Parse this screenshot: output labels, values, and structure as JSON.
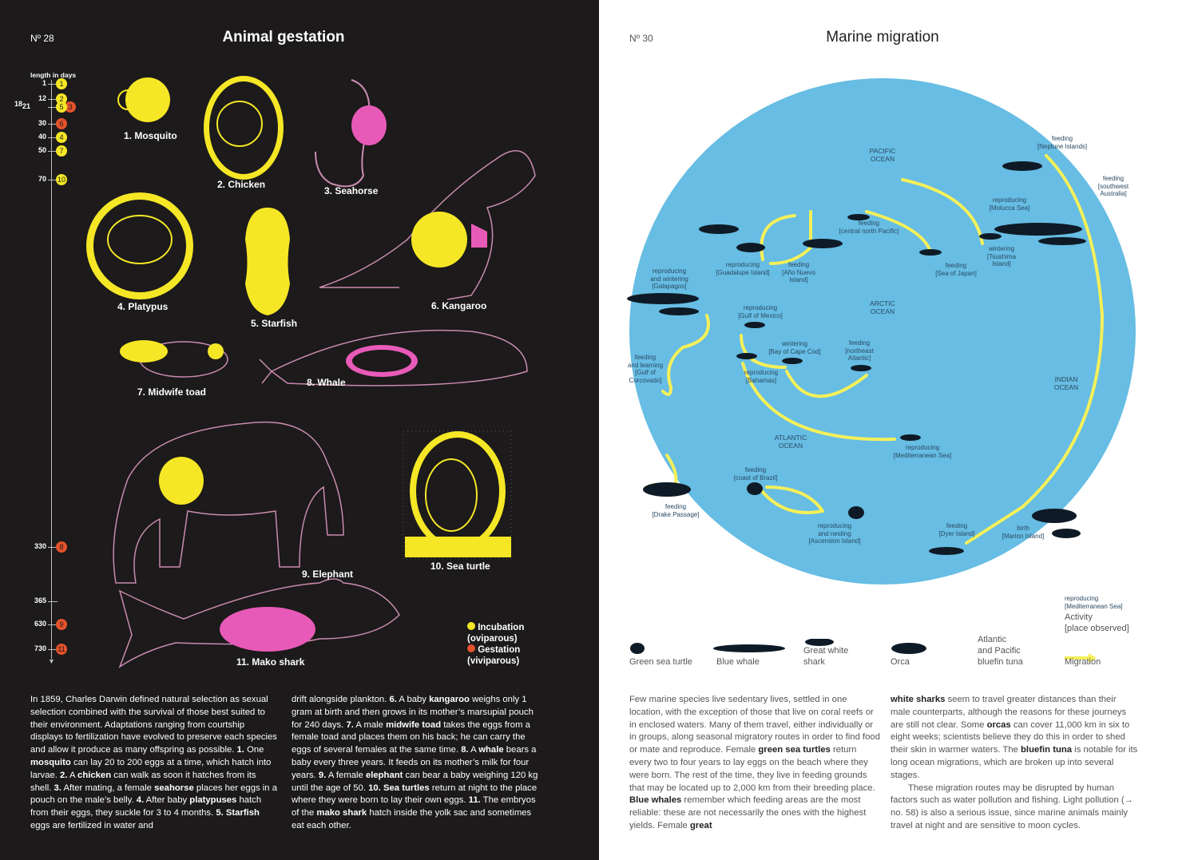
{
  "left": {
    "page_number": "Nº 28",
    "title": "Animal gestation",
    "timeline": {
      "header": "length in days",
      "ticks": [
        {
          "days": "1",
          "ids": [
            {
              "n": "1",
              "type": "incubation"
            }
          ]
        },
        {
          "days": "12",
          "ids": [
            {
              "n": "2",
              "type": "incubation"
            }
          ]
        },
        {
          "days": "18",
          "ids": [
            {
              "n": "3",
              "type": "gestation"
            }
          ]
        },
        {
          "days": "21",
          "ids": [
            {
              "n": "5",
              "type": "incubation"
            }
          ]
        },
        {
          "days": "30",
          "ids": [
            {
              "n": "6",
              "type": "gestation"
            }
          ]
        },
        {
          "days": "40",
          "ids": [
            {
              "n": "4",
              "type": "incubation"
            }
          ]
        },
        {
          "days": "50",
          "ids": [
            {
              "n": "7",
              "type": "incubation"
            }
          ]
        },
        {
          "days": "70",
          "ids": [
            {
              "n": "10",
              "type": "incubation"
            }
          ]
        },
        {
          "days": "330",
          "ids": [
            {
              "n": "8",
              "type": "gestation"
            }
          ]
        },
        {
          "days": "365",
          "ids": []
        },
        {
          "days": "630",
          "ids": [
            {
              "n": "9",
              "type": "gestation"
            }
          ]
        },
        {
          "days": "730",
          "ids": [
            {
              "n": "11",
              "type": "gestation"
            }
          ]
        }
      ]
    },
    "animals": [
      "1. Mosquito",
      "2. Chicken",
      "3. Seahorse",
      "4. Platypus",
      "5. Starfish",
      "6. Kangaroo",
      "7. Midwife toad",
      "8. Whale",
      "9. Elephant",
      "10. Sea turtle",
      "11. Mako shark"
    ],
    "legend": {
      "incubation": "Incubation",
      "incubation_sub": "(oviparous)",
      "gestation": "Gestation",
      "gestation_sub": "(viviparous)"
    },
    "colors": {
      "incubation": "#f5e726",
      "gestation": "#e4522b",
      "pouch": "#e85ab8",
      "outline": "#c98bb0"
    },
    "text_col1": [
      [
        "In 1859, Charles Darwin defined natural selection as sexual selection combined with the survival of those best suited to their environment. Adaptations ranging from courtship displays to fertilization have evolved to preserve each species and allow it produce as many offspring as possible. "
      ],
      [
        "1.",
        1
      ],
      [
        " One "
      ],
      [
        "mosquito",
        1
      ],
      [
        " can lay 20 to 200 eggs at a time, which hatch into larvae. "
      ],
      [
        "2.",
        1
      ],
      [
        " A "
      ],
      [
        "chicken",
        1
      ],
      [
        " can walk as soon it hatches from its shell. "
      ],
      [
        "3.",
        1
      ],
      [
        " After mating, a female "
      ],
      [
        "seahorse",
        1
      ],
      [
        " places her eggs in a pouch on the male’s belly. "
      ],
      [
        "4.",
        1
      ],
      [
        " After baby "
      ],
      [
        "platypuses",
        1
      ],
      [
        " hatch from their eggs, they suckle for 3 to 4 months. "
      ],
      [
        "5. Starfish",
        1
      ],
      [
        " eggs are fertilized in water and"
      ]
    ],
    "text_col2": [
      [
        "drift alongside plankton. "
      ],
      [
        "6.",
        1
      ],
      [
        " A baby "
      ],
      [
        "kangaroo",
        1
      ],
      [
        " weighs only 1 gram at birth and then grows in its mother’s marsupial pouch for 240 days. "
      ],
      [
        "7.",
        1
      ],
      [
        " A male "
      ],
      [
        "midwife toad",
        1
      ],
      [
        " takes the eggs from a female toad and places them on his back; he can carry the eggs of several females at the same time. "
      ],
      [
        "8.",
        1
      ],
      [
        " A "
      ],
      [
        "whale",
        1
      ],
      [
        " bears a baby every three years. It feeds on its mother’s milk for four years. "
      ],
      [
        "9.",
        1
      ],
      [
        " A female "
      ],
      [
        "elephant",
        1
      ],
      [
        " can bear a baby weighing 120 kg until the age of 50. "
      ],
      [
        "10. Sea turtles",
        1
      ],
      [
        " return at night to the place where they were born to lay their own eggs. "
      ],
      [
        "11.",
        1
      ],
      [
        " The embryos of the "
      ],
      [
        "mako shark",
        1
      ],
      [
        " hatch inside the yolk sac and sometimes eat each other."
      ]
    ]
  },
  "right": {
    "page_number": "Nº 30",
    "title": "Marine migration",
    "colors": {
      "ocean": "#67bde3",
      "migration": "#f5f05a",
      "animal": "#0e1a26"
    },
    "oceans": [
      "PACIFIC\nOCEAN",
      "ARCTIC\nOCEAN",
      "INDIAN\nOCEAN",
      "ATLANTIC\nOCEAN"
    ],
    "places": [
      "feeding\n[Neptune Islands]",
      "feeding\n[southwest\nAustralia]",
      "reproducing\n[Molucca Sea]",
      "feeding\n[central north Pacific]",
      "wintering\n[Tsushima\nIsland]",
      "feeding\n[Sea of Japan]",
      "reproducing\n[Guadalupe Island]",
      "feeding\n[Año Nuevo\nIsland]",
      "reproducing\nand wintering\n[Galapagos]",
      "reproducing\n[Gulf of Mexico]",
      "wintering\n[Bay of Cape Cod]",
      "feeding\n[northeast\nAtlantic]",
      "reproducing\n[Bahamas]",
      "feeding\nand learning\n[Gulf of\nCorcovado]",
      "reproducing\n[Mediterranean Sea]",
      "feeding\n[coast of Brazil]",
      "feeding\n[Drake Passage]",
      "reproducing\nand nesting\n[Ascension Island]",
      "feeding\n[Dyer Island]",
      "birth\n[Marion Island]"
    ],
    "legend": {
      "species": [
        "Green sea turtle",
        "Blue whale",
        "Great white\nshark",
        "Orca",
        "Atlantic\nand Pacific\nbluefin tuna",
        "Migration"
      ],
      "example_place": "reproducing\n[Mediterranean Sea]",
      "activity": "Activity\n[place observed]"
    },
    "text_col1": [
      [
        "Few marine species live sedentary lives, settled in one location, with the exception of those that live on coral reefs or in enclosed waters. Many of them travel, either individually or in groups, along seasonal migratory routes in order to find food or mate and reproduce. Female "
      ],
      [
        "green sea turtles",
        1
      ],
      [
        " return every two to four years to lay eggs on the beach where they were born. The rest of the time, they live in feeding grounds that may be located up to 2,000 km from their breeding place. "
      ],
      [
        "Blue whales",
        1
      ],
      [
        " remember which feeding areas are the most reliable: these are not necessarily the ones with the highest yields. Female "
      ],
      [
        "great",
        1
      ]
    ],
    "text_col2": [
      [
        "white sharks",
        1
      ],
      [
        " seem to travel greater distances than their male counterparts, although the reasons for these journeys are still not clear. Some "
      ],
      [
        "orcas",
        1
      ],
      [
        " can cover 11,000 km in six to eight weeks; scientists believe they do this in order to shed their skin in warmer waters. The "
      ],
      [
        "bluefin tuna",
        1
      ],
      [
        " is notable for its long ocean migrations, which are broken up into several stages."
      ]
    ],
    "text_col2b": [
      [
        "These migration routes may be disrupted by human factors such as water pollution and fishing. Light pollution (→ no. 58) is also a serious issue, since marine animals mainly travel at night and are sensitive to moon cycles."
      ]
    ]
  }
}
